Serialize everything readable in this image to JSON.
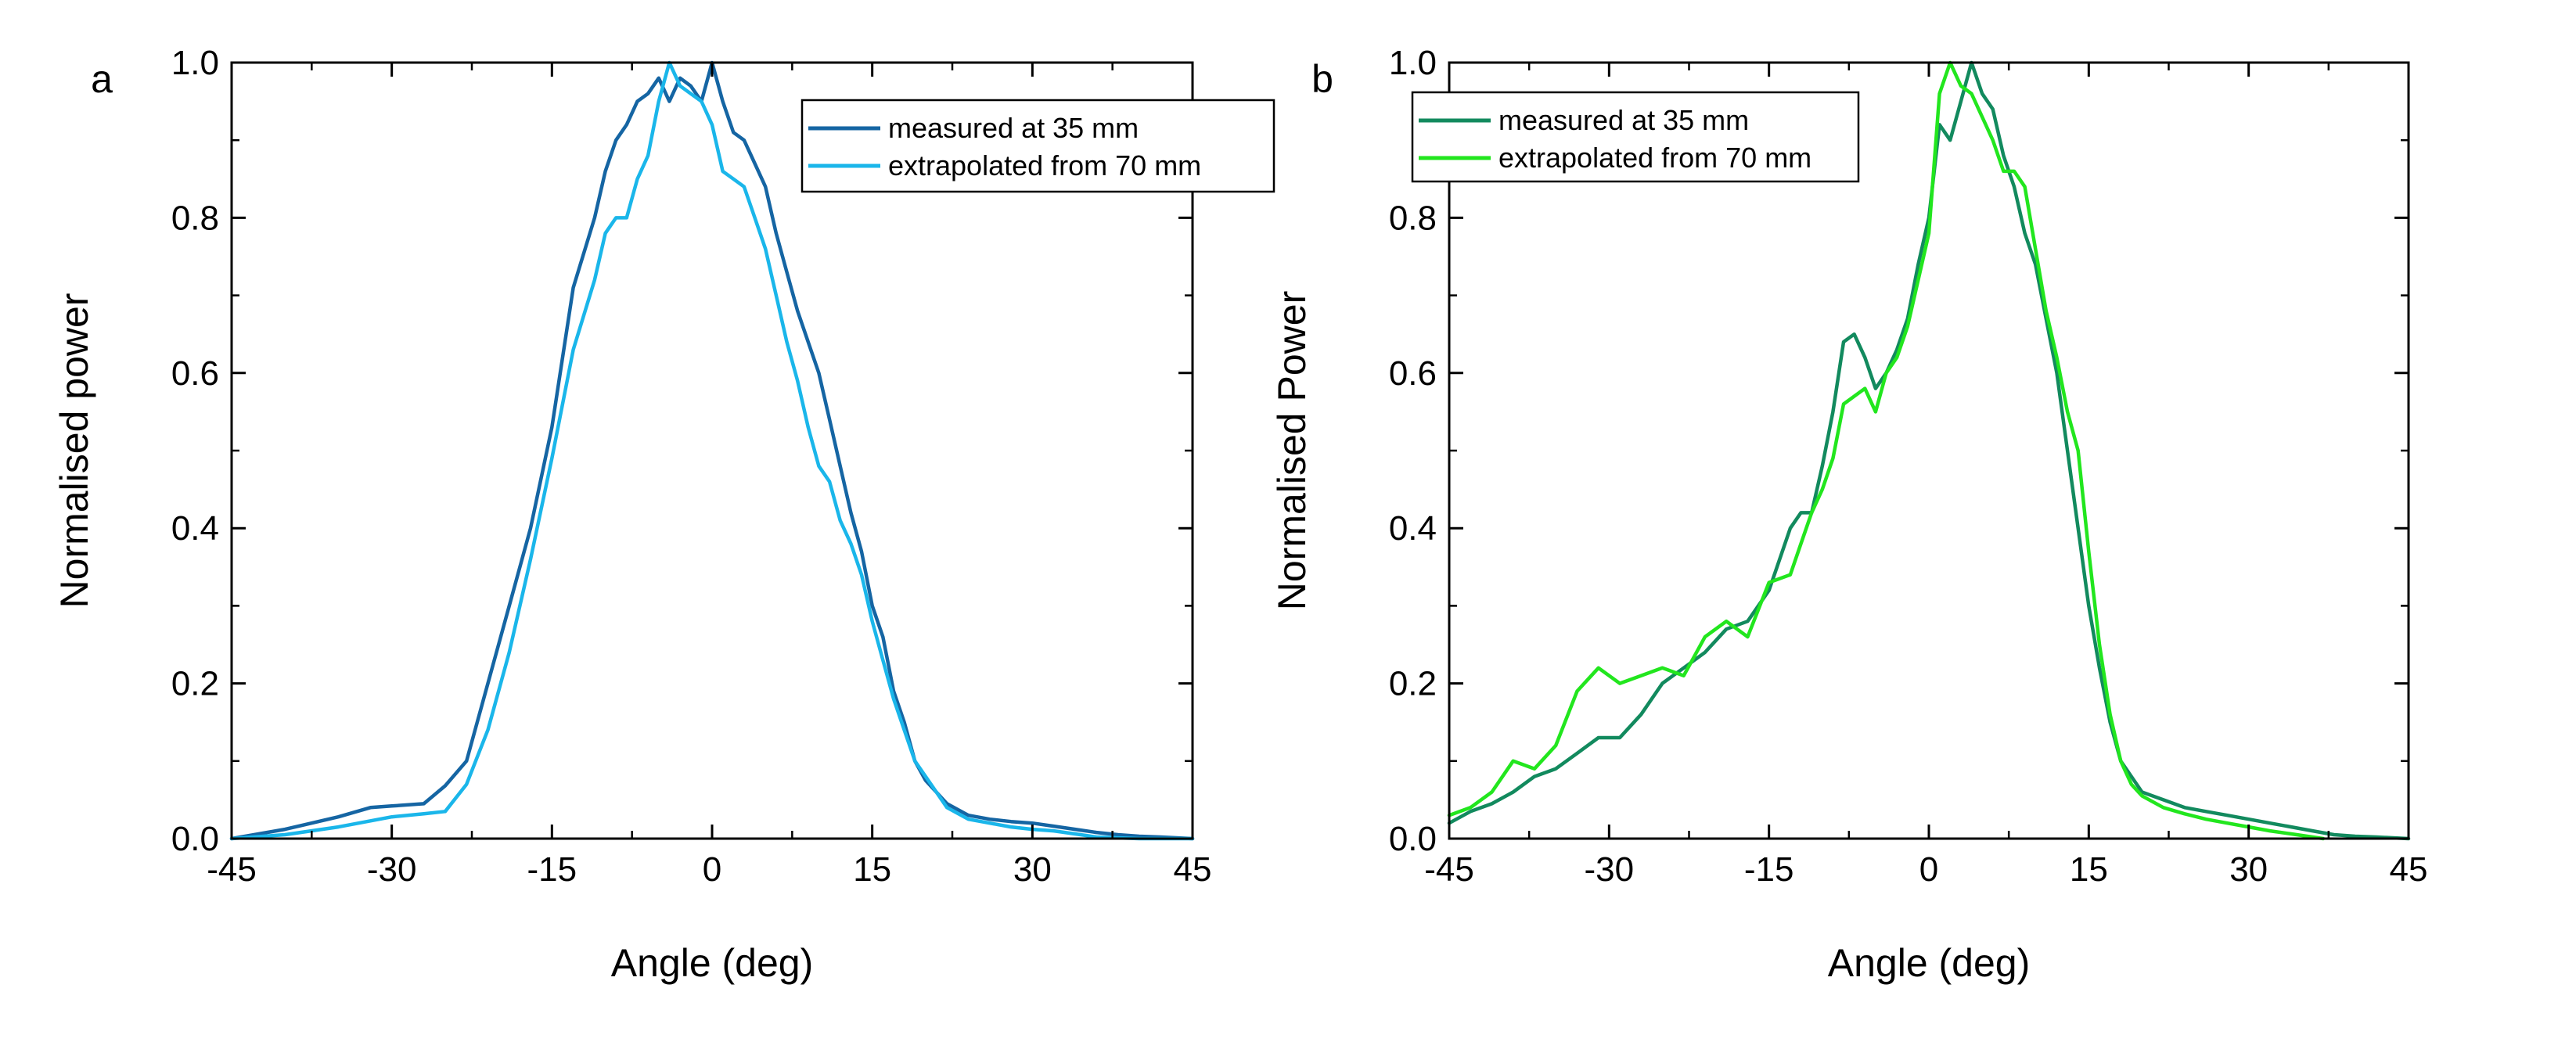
{
  "chart_data": [
    {
      "type": "line",
      "panel_label": "a",
      "xlabel": "Angle (deg)",
      "ylabel": "Normalised power",
      "xlim": [
        -45,
        45
      ],
      "ylim": [
        0,
        1.0
      ],
      "xticks": [
        -45,
        -30,
        -15,
        0,
        15,
        30,
        45
      ],
      "xtick_labels": [
        "-45",
        "-30",
        "-15",
        "0",
        "15",
        "30",
        "45"
      ],
      "yticks": [
        0,
        0.2,
        0.4,
        0.6,
        0.8,
        1.0
      ],
      "ytick_labels": [
        "0.0",
        "0.2",
        "0.4",
        "0.6",
        "0.8",
        "1.0"
      ],
      "grid": false,
      "legend_position": "top-right",
      "series": [
        {
          "name": "measured at 35 mm",
          "color": "#1565a3",
          "x": [
            -45,
            -40,
            -35,
            -32,
            -30,
            -27,
            -25,
            -23,
            -21,
            -19,
            -17,
            -15,
            -13,
            -11,
            -10,
            -9,
            -8,
            -7,
            -6,
            -5,
            -4,
            -3,
            -2,
            -1,
            0,
            1,
            2,
            3,
            4,
            5,
            6,
            7,
            8,
            9,
            10,
            11,
            12,
            13,
            14,
            15,
            16,
            17,
            18,
            19,
            20,
            22,
            24,
            26,
            28,
            30,
            32,
            34,
            36,
            38,
            40,
            42,
            45
          ],
          "y": [
            0.0,
            0.012,
            0.028,
            0.04,
            0.042,
            0.045,
            0.068,
            0.1,
            0.2,
            0.3,
            0.4,
            0.53,
            0.71,
            0.8,
            0.86,
            0.9,
            0.92,
            0.95,
            0.96,
            0.98,
            0.95,
            0.98,
            0.97,
            0.95,
            1.0,
            0.95,
            0.91,
            0.9,
            0.87,
            0.84,
            0.78,
            0.73,
            0.68,
            0.64,
            0.6,
            0.54,
            0.48,
            0.42,
            0.37,
            0.3,
            0.26,
            0.19,
            0.15,
            0.1,
            0.075,
            0.045,
            0.03,
            0.025,
            0.022,
            0.02,
            0.016,
            0.012,
            0.008,
            0.005,
            0.003,
            0.002,
            0.0
          ]
        },
        {
          "name": "extrapolated from 70 mm",
          "color": "#1ab6ea",
          "x": [
            -45,
            -40,
            -35,
            -30,
            -27,
            -25,
            -23,
            -21,
            -19,
            -17,
            -15,
            -13,
            -11,
            -10,
            -9,
            -8,
            -7,
            -6,
            -5,
            -4,
            -3,
            -2,
            -1,
            0,
            1,
            2,
            3,
            4,
            5,
            6,
            7,
            8,
            9,
            10,
            11,
            12,
            13,
            14,
            15,
            16,
            17,
            18,
            19,
            20,
            22,
            24,
            26,
            28,
            30,
            32,
            34,
            36,
            38,
            40,
            42,
            45
          ],
          "y": [
            0.0,
            0.005,
            0.015,
            0.028,
            0.032,
            0.035,
            0.07,
            0.14,
            0.24,
            0.36,
            0.49,
            0.63,
            0.72,
            0.78,
            0.8,
            0.8,
            0.85,
            0.88,
            0.95,
            1.0,
            0.97,
            0.96,
            0.95,
            0.92,
            0.86,
            0.85,
            0.84,
            0.8,
            0.76,
            0.7,
            0.64,
            0.59,
            0.53,
            0.48,
            0.46,
            0.41,
            0.38,
            0.34,
            0.28,
            0.23,
            0.18,
            0.14,
            0.1,
            0.08,
            0.04,
            0.025,
            0.02,
            0.015,
            0.012,
            0.01,
            0.006,
            0.002,
            0.001,
            0.0,
            0.0,
            0.0
          ]
        }
      ]
    },
    {
      "type": "line",
      "panel_label": "b",
      "xlabel": "Angle (deg)",
      "ylabel": "Normalised Power",
      "xlim": [
        -45,
        45
      ],
      "ylim": [
        0,
        1.0
      ],
      "xticks": [
        -45,
        -30,
        -15,
        0,
        15,
        30,
        45
      ],
      "xtick_labels": [
        "-45",
        "-30",
        "-15",
        "0",
        "15",
        "30",
        "45"
      ],
      "yticks": [
        0,
        0.2,
        0.4,
        0.6,
        0.8,
        1.0
      ],
      "ytick_labels": [
        "0.0",
        "0.2",
        "0.4",
        "0.6",
        "0.8",
        "1.0"
      ],
      "grid": false,
      "legend_position": "top-left",
      "series": [
        {
          "name": "measured at 35 mm",
          "color": "#128a5e",
          "x": [
            -45,
            -43,
            -41,
            -39,
            -37,
            -35,
            -33,
            -31,
            -29,
            -27,
            -25,
            -23,
            -21,
            -19,
            -17,
            -15,
            -13,
            -12,
            -11,
            -10,
            -9,
            -8,
            -7,
            -6,
            -5,
            -4,
            -3,
            -2,
            -1,
            0,
            1,
            2,
            3,
            4,
            5,
            6,
            7,
            8,
            9,
            10,
            11,
            12,
            13,
            14,
            15,
            16,
            17,
            18,
            19,
            20,
            22,
            24,
            26,
            28,
            30,
            32,
            34,
            36,
            38,
            40,
            42,
            45
          ],
          "y": [
            0.02,
            0.035,
            0.045,
            0.06,
            0.08,
            0.09,
            0.11,
            0.13,
            0.13,
            0.16,
            0.2,
            0.22,
            0.24,
            0.27,
            0.28,
            0.32,
            0.4,
            0.42,
            0.42,
            0.48,
            0.55,
            0.64,
            0.65,
            0.62,
            0.58,
            0.6,
            0.63,
            0.67,
            0.74,
            0.8,
            0.92,
            0.9,
            0.95,
            1.0,
            0.96,
            0.94,
            0.88,
            0.84,
            0.78,
            0.74,
            0.67,
            0.6,
            0.5,
            0.4,
            0.3,
            0.22,
            0.15,
            0.1,
            0.08,
            0.06,
            0.05,
            0.04,
            0.035,
            0.03,
            0.025,
            0.02,
            0.015,
            0.01,
            0.005,
            0.003,
            0.002,
            0.0
          ]
        },
        {
          "name": "extrapolated from 70 mm",
          "color": "#22e61e",
          "x": [
            -45,
            -43,
            -41,
            -39,
            -37,
            -35,
            -33,
            -31,
            -29,
            -27,
            -25,
            -23,
            -21,
            -19,
            -17,
            -15,
            -13,
            -12,
            -11,
            -10,
            -9,
            -8,
            -7,
            -6,
            -5,
            -4,
            -3,
            -2,
            -1,
            0,
            1,
            2,
            3,
            4,
            5,
            6,
            7,
            8,
            9,
            10,
            11,
            12,
            13,
            14,
            15,
            16,
            17,
            18,
            19,
            20,
            22,
            24,
            26,
            28,
            30,
            32,
            34,
            36,
            37
          ],
          "y": [
            0.03,
            0.04,
            0.06,
            0.1,
            0.09,
            0.12,
            0.19,
            0.22,
            0.2,
            0.21,
            0.22,
            0.21,
            0.26,
            0.28,
            0.26,
            0.33,
            0.34,
            0.38,
            0.42,
            0.45,
            0.49,
            0.56,
            0.57,
            0.58,
            0.55,
            0.6,
            0.62,
            0.66,
            0.72,
            0.78,
            0.96,
            1.0,
            0.97,
            0.96,
            0.93,
            0.9,
            0.86,
            0.86,
            0.84,
            0.76,
            0.68,
            0.62,
            0.55,
            0.5,
            0.37,
            0.25,
            0.16,
            0.1,
            0.07,
            0.055,
            0.04,
            0.032,
            0.025,
            0.02,
            0.015,
            0.01,
            0.006,
            0.002,
            0.0
          ]
        }
      ]
    }
  ]
}
